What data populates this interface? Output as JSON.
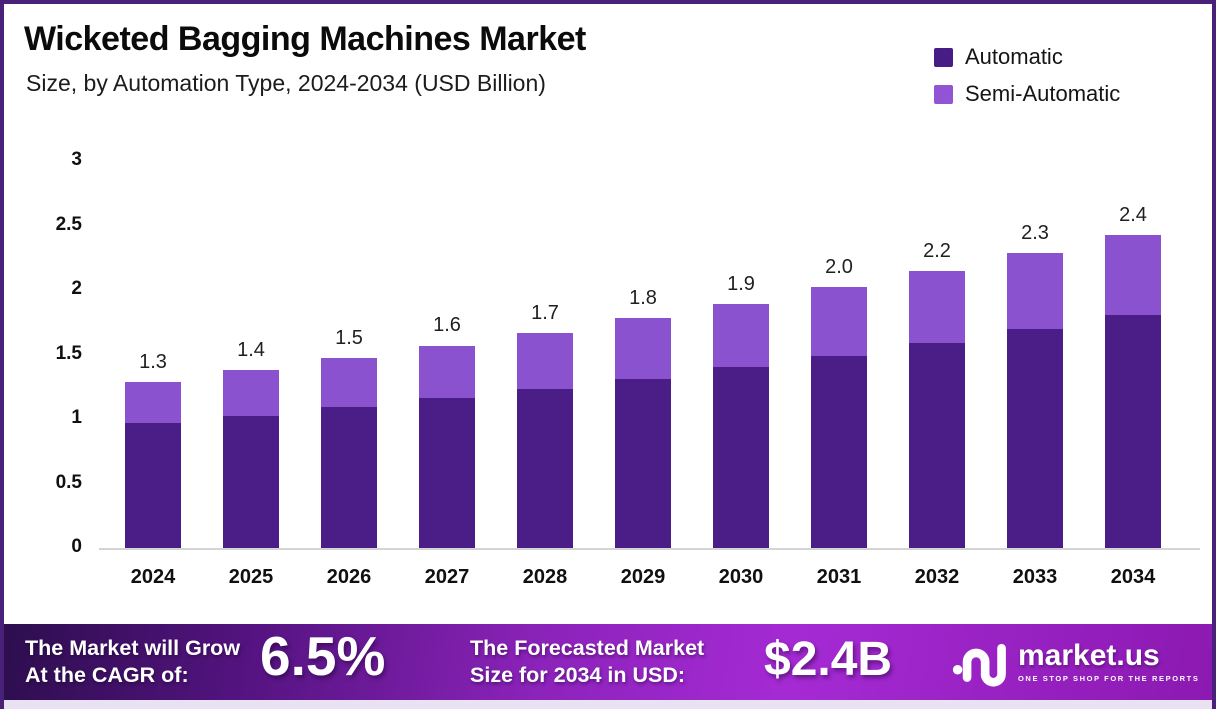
{
  "title": "Wicketed Bagging Machines Market",
  "subtitle": "Size, by Automation Type, 2024-2034 (USD Billion)",
  "legend": [
    {
      "label": "Automatic",
      "color": "#471c85"
    },
    {
      "label": "Semi-Automatic",
      "color": "#9154d4"
    }
  ],
  "chart_data": {
    "type": "bar",
    "stacked": true,
    "title": "Wicketed Bagging Machines Market Size, by Automation Type, 2024-2034 (USD Billion)",
    "categories": [
      "2024",
      "2025",
      "2026",
      "2027",
      "2028",
      "2029",
      "2030",
      "2031",
      "2032",
      "2033",
      "2034"
    ],
    "series": [
      {
        "name": "Automatic",
        "color": "#4a1d87",
        "values": [
          0.97,
          1.02,
          1.09,
          1.16,
          1.23,
          1.31,
          1.4,
          1.49,
          1.59,
          1.7,
          1.81
        ]
      },
      {
        "name": "Semi-Automatic",
        "color": "#8a52ce",
        "values": [
          0.32,
          0.36,
          0.38,
          0.41,
          0.44,
          0.47,
          0.49,
          0.53,
          0.56,
          0.59,
          0.62
        ]
      }
    ],
    "total_labels": [
      "1.3",
      "1.4",
      "1.5",
      "1.6",
      "1.7",
      "1.8",
      "1.9",
      "2.0",
      "2.2",
      "2.3",
      "2.4"
    ],
    "xlabel": "",
    "ylabel": "",
    "ylim": [
      0,
      3
    ],
    "ytick_labels": [
      "3",
      "2.5",
      "2",
      "1.5",
      "1",
      "0.5",
      "0"
    ],
    "ytick_values": [
      3,
      2.5,
      2,
      1.5,
      1,
      0.5,
      0
    ],
    "grid": false,
    "legend_position": "top-right",
    "units": "USD Billion"
  },
  "banner": {
    "cagr_label_line1": "The Market will Grow",
    "cagr_label_line2": "At the CAGR of:",
    "cagr_value": "6.5%",
    "forecast_label_line1": "The Forecasted Market",
    "forecast_label_line2": "Size for 2034 in USD:",
    "forecast_value": "$2.4B",
    "logo_text": "market.us",
    "logo_tagline": "ONE STOP SHOP FOR THE REPORTS"
  },
  "colors": {
    "border": "#4a2178",
    "bar_dark": "#4a1d87",
    "bar_light": "#8a52ce",
    "axis_line": "#d4d4d4",
    "banner_gradient": [
      "#2d0e4e",
      "#53137f",
      "#8d23bb",
      "#a52ad4",
      "#8c19b1"
    ],
    "bottom_strip": "#e8e2f2",
    "text_white": "#ffffff",
    "text_dark": "#111111"
  }
}
